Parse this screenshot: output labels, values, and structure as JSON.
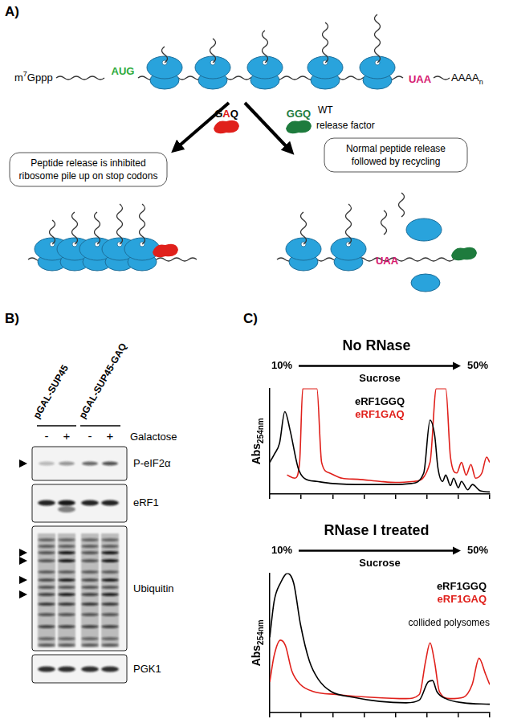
{
  "panel_a": {
    "label": "A)",
    "mrna": {
      "cap": [
        "m",
        "7",
        "Gppp"
      ],
      "start_codon": "AUG",
      "stop_codon": "UAA",
      "tail": [
        "AAAA",
        "n"
      ]
    },
    "mutant_factor": "GAQ",
    "wt_factor": {
      "motif": "GGQ",
      "label": [
        "WT",
        "release factor"
      ]
    },
    "left_outcome": [
      "Peptide release is inhibited",
      "ribosome pile up on stop codons"
    ],
    "right_outcome": [
      "Normal peptide release",
      "followed by recycling"
    ],
    "right_stop_codon": "UAA"
  },
  "panel_b": {
    "label": "B)",
    "strains": [
      "pGAL-SUP45",
      "pGAL-SUP45-GAQ"
    ],
    "galactose_label": "Galactose",
    "lanes": [
      "-",
      "+",
      "-",
      "+"
    ],
    "blots": [
      "P-eIF2α",
      "eRF1",
      "Ubiquitin",
      "PGK1"
    ]
  },
  "panel_c": {
    "label": "C)"
  },
  "chart_data": [
    {
      "type": "line",
      "title": "No RNase",
      "gradient": {
        "start": "10%",
        "label": "Sucrose",
        "end": "50%"
      },
      "y_label": "Abs",
      "y_label_sub": "254nm",
      "xlim": [
        0,
        7
      ],
      "xticks": [
        0,
        1,
        2,
        3,
        4,
        5,
        6,
        7
      ],
      "ylim": [
        0,
        100
      ],
      "tick_labels": false,
      "grid": false,
      "legend": "upper center",
      "series": [
        {
          "name": "eRF1GGQ",
          "color": "#000000",
          "x": [
            0,
            0.15,
            0.31,
            0.48,
            0.65,
            0.9,
            1.1,
            1.5,
            2,
            3,
            4,
            4.5,
            4.9,
            5.1,
            5.25,
            5.35,
            5.5,
            5.6,
            5.75,
            5.85,
            6,
            6.1,
            6.3,
            6.45,
            6.7,
            7
          ],
          "values": [
            30,
            38,
            48,
            78,
            60,
            25,
            15,
            12,
            10,
            9,
            9,
            10,
            20,
            70,
            55,
            25,
            12,
            18,
            8,
            15,
            6,
            12,
            4,
            9,
            3,
            2
          ]
        },
        {
          "name": "eRF1GAQ",
          "color": "#e0201b",
          "x": [
            0.55,
            0.8,
            0.95,
            1.05,
            1.5,
            1.65,
            1.9,
            2.3,
            2.8,
            3.5,
            4,
            4.6,
            5.1,
            5.3,
            5.6,
            5.75,
            5.95,
            6.1,
            6.25,
            6.4,
            6.55,
            6.75,
            6.9,
            7
          ],
          "values": [
            18,
            15,
            30,
            100,
            100,
            30,
            20,
            15,
            14,
            12,
            11,
            12,
            30,
            100,
            100,
            35,
            20,
            30,
            18,
            28,
            15,
            20,
            35,
            30
          ]
        }
      ]
    },
    {
      "type": "line",
      "title": "RNase I treated",
      "gradient": {
        "start": "10%",
        "label": "Sucrose",
        "end": "50%"
      },
      "y_label": "Abs",
      "y_label_sub": "254nm",
      "xlim": [
        0,
        7
      ],
      "xticks": [
        0,
        1,
        2,
        3,
        4,
        5,
        6,
        7
      ],
      "ylim": [
        0,
        100
      ],
      "tick_labels": false,
      "grid": false,
      "legend": "upper right",
      "annotations": [
        "collided polysomes"
      ],
      "series": [
        {
          "name": "eRF1GGQ",
          "color": "#000000",
          "x": [
            0,
            0.14,
            0.34,
            0.56,
            0.76,
            0.98,
            1.26,
            1.54,
            1.96,
            2.66,
            3.5,
            4.34,
            4.76,
            5.04,
            5.18,
            5.32,
            5.6,
            6.16,
            7
          ],
          "values": [
            54,
            80,
            93,
            100,
            93,
            63,
            37,
            24,
            15,
            11,
            8,
            7,
            9,
            22,
            23,
            15,
            10,
            7,
            6
          ]
        },
        {
          "name": "eRF1GAQ",
          "color": "#e0201b",
          "x": [
            0,
            0.14,
            0.34,
            0.5,
            0.7,
            0.98,
            1.4,
            2.1,
            3.22,
            4.34,
            4.76,
            4.96,
            5.1,
            5.24,
            5.4,
            5.74,
            6.16,
            6.44,
            6.66,
            6.86,
            7
          ],
          "values": [
            22,
            41,
            52,
            48,
            30,
            20,
            15,
            13,
            11,
            10,
            13,
            37,
            50,
            37,
            15,
            10,
            11,
            20,
            39,
            28,
            20
          ]
        }
      ]
    }
  ]
}
